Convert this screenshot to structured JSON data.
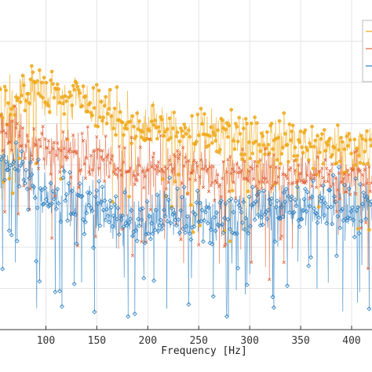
{
  "chart_data": {
    "type": "scatter",
    "title": "",
    "xlabel": "Frequency [Hz]",
    "ylabel": "",
    "xlim": [
      55,
      420
    ],
    "x_ticks": [
      100,
      150,
      200,
      250,
      300,
      350,
      400
    ],
    "x_tick_labels": [
      "100",
      "150",
      "200",
      "250",
      "300",
      "350",
      "400"
    ],
    "grid": true,
    "legend": "top-right",
    "stems": true,
    "series": [
      {
        "marker": "circle",
        "color": "#f0a818",
        "x": [
          58,
          75,
          92,
          108,
          125,
          142,
          158,
          175,
          192,
          208,
          225,
          242,
          258,
          275,
          292,
          308,
          325,
          342,
          358,
          375,
          392,
          408,
          418
        ],
        "level": [
          0.68,
          0.71,
          0.73,
          0.71,
          0.7,
          0.68,
          0.66,
          0.64,
          0.62,
          0.63,
          0.61,
          0.6,
          0.61,
          0.6,
          0.59,
          0.58,
          0.58,
          0.57,
          0.56,
          0.56,
          0.55,
          0.55,
          0.55
        ],
        "spread": 0.07
      },
      {
        "marker": "x",
        "color": "#e0643a",
        "x": [
          58,
          75,
          92,
          108,
          125,
          142,
          158,
          175,
          192,
          208,
          225,
          242,
          258,
          275,
          292,
          308,
          325,
          342,
          358,
          375,
          392,
          408,
          418
        ],
        "level": [
          0.6,
          0.58,
          0.56,
          0.55,
          0.54,
          0.52,
          0.52,
          0.5,
          0.49,
          0.5,
          0.5,
          0.49,
          0.48,
          0.47,
          0.47,
          0.46,
          0.47,
          0.46,
          0.47,
          0.46,
          0.46,
          0.46,
          0.46
        ],
        "spread": 0.07
      },
      {
        "marker": "diamond",
        "color": "#2b7fc2",
        "x": [
          58,
          75,
          92,
          108,
          125,
          142,
          158,
          175,
          192,
          208,
          225,
          242,
          258,
          275,
          292,
          308,
          325,
          342,
          358,
          375,
          392,
          408,
          418
        ],
        "level": [
          0.5,
          0.47,
          0.43,
          0.4,
          0.39,
          0.37,
          0.36,
          0.34,
          0.33,
          0.35,
          0.34,
          0.33,
          0.34,
          0.34,
          0.35,
          0.36,
          0.37,
          0.37,
          0.37,
          0.38,
          0.37,
          0.38,
          0.38
        ],
        "spread": 0.08
      }
    ]
  }
}
